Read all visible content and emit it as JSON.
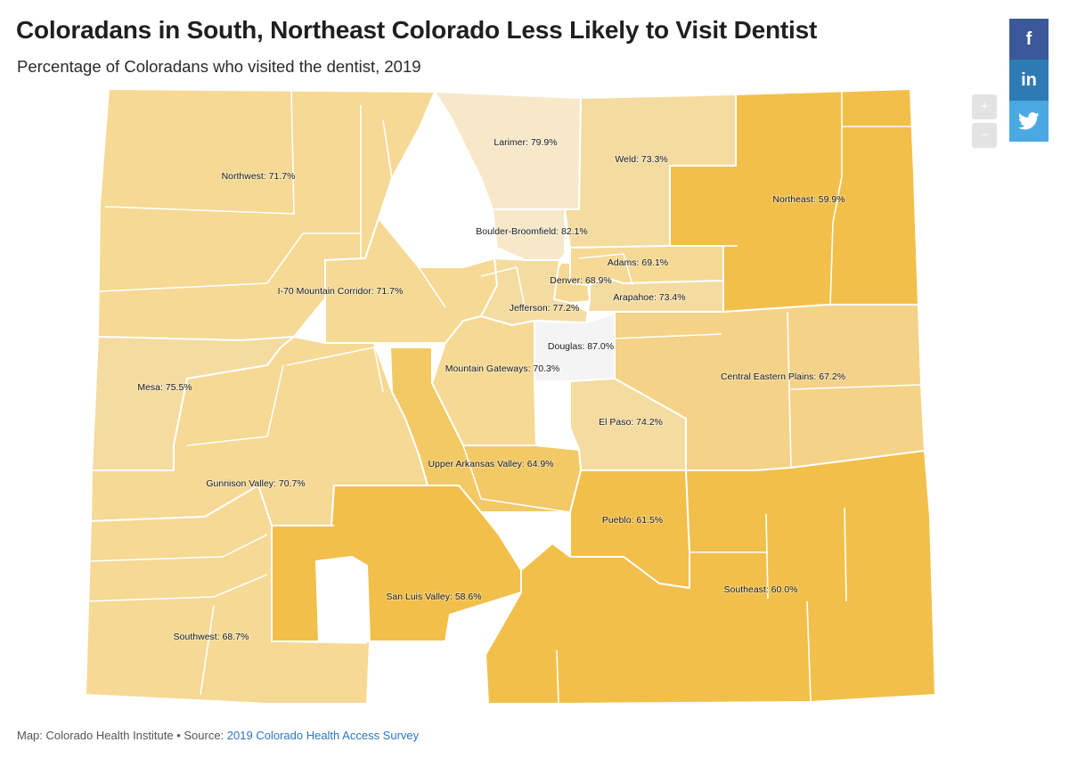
{
  "header": {
    "title": "Coloradans in South, Northeast Colorado Less Likely to Visit Dentist",
    "subtitle": "Percentage of Coloradans who visited the dentist, 2019"
  },
  "controls": {
    "zoom_in": "+",
    "zoom_out": "−"
  },
  "share": {
    "facebook_icon": "facebook-icon",
    "linkedin_icon": "linkedin-icon",
    "twitter_icon": "twitter-icon"
  },
  "colors": {
    "lightest": "#f4f4f4",
    "very_light": "#f6e8c9",
    "light": "#f4dba0",
    "medium_light": "#f5d994",
    "medium": "#f4d288",
    "medium_dark": "#f2c964",
    "dark": "#f2bf4a",
    "share_facebook": "#3b5998",
    "share_linkedin": "#2e7ab4",
    "share_twitter": "#4aa8e3",
    "link": "#2a78c0"
  },
  "chart_data": {
    "type": "choropleth",
    "title": "Coloradans in South, Northeast Colorado Less Likely to Visit Dentist",
    "subtitle": "Percentage of Coloradans who visited the dentist, 2019",
    "unit": "%",
    "regions": [
      {
        "id": "northwest",
        "name": "Northwest",
        "value": 71.7,
        "label": "Northwest: 71.7%"
      },
      {
        "id": "larimer",
        "name": "Larimer",
        "value": 79.9,
        "label": "Larimer: 79.9%"
      },
      {
        "id": "weld",
        "name": "Weld",
        "value": 73.3,
        "label": "Weld: 73.3%"
      },
      {
        "id": "northeast",
        "name": "Northeast",
        "value": 59.9,
        "label": "Northeast: 59.9%"
      },
      {
        "id": "boulder",
        "name": "Boulder-Broomfield",
        "value": 82.1,
        "label": "Boulder-Broomfield: 82.1%"
      },
      {
        "id": "adams",
        "name": "Adams",
        "value": 69.1,
        "label": "Adams: 69.1%"
      },
      {
        "id": "denver",
        "name": "Denver",
        "value": 68.9,
        "label": "Denver: 68.9%"
      },
      {
        "id": "arapahoe",
        "name": "Arapahoe",
        "value": 73.4,
        "label": "Arapahoe: 73.4%"
      },
      {
        "id": "i70",
        "name": "I-70 Mountain Corridor",
        "value": 71.7,
        "label": "I-70 Mountain Corridor: 71.7%"
      },
      {
        "id": "jefferson",
        "name": "Jefferson",
        "value": 77.2,
        "label": "Jefferson: 77.2%"
      },
      {
        "id": "douglas",
        "name": "Douglas",
        "value": 87.0,
        "label": "Douglas: 87.0%"
      },
      {
        "id": "mesa",
        "name": "Mesa",
        "value": 75.5,
        "label": "Mesa: 75.5%"
      },
      {
        "id": "mtngateways",
        "name": "Mountain Gateways",
        "value": 70.3,
        "label": "Mountain Gateways: 70.3%"
      },
      {
        "id": "centraleast",
        "name": "Central Eastern Plains",
        "value": 67.2,
        "label": "Central Eastern Plains: 67.2%"
      },
      {
        "id": "elpaso",
        "name": "El Paso",
        "value": 74.2,
        "label": "El Paso: 74.2%"
      },
      {
        "id": "upperark",
        "name": "Upper Arkansas Valley",
        "value": 64.9,
        "label": "Upper Arkansas Valley: 64.9%"
      },
      {
        "id": "gunnison",
        "name": "Gunnison Valley",
        "value": 70.7,
        "label": "Gunnison Valley: 70.7%"
      },
      {
        "id": "pueblo",
        "name": "Pueblo",
        "value": 61.5,
        "label": "Pueblo: 61.5%"
      },
      {
        "id": "sanluis",
        "name": "San Luis Valley",
        "value": 58.6,
        "label": "San Luis Valley: 58.6%"
      },
      {
        "id": "southeast",
        "name": "Southeast",
        "value": 60.0,
        "label": "Southeast: 60.0%"
      },
      {
        "id": "southwest",
        "name": "Southwest",
        "value": 68.7,
        "label": "Southwest: 68.7%"
      }
    ]
  },
  "footer": {
    "credit": "Map: Colorado Health Institute • Source: ",
    "source_link": "2019 Colorado Health Access Survey"
  }
}
